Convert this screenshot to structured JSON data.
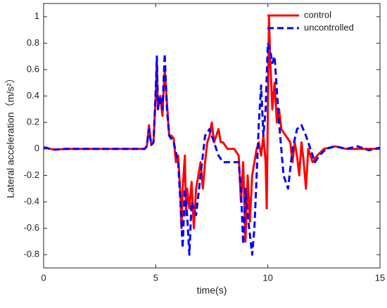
{
  "chart_data": {
    "type": "line",
    "xlabel": "time(s)",
    "ylabel": "Lateral acceleration（m/s²）",
    "xlim": [
      0,
      15
    ],
    "xticks": [
      0,
      5,
      10,
      15
    ],
    "ylim": [
      -0.9,
      1.1
    ],
    "yticks": [
      -0.8,
      -0.6,
      -0.4,
      -0.2,
      0,
      0.2,
      0.4,
      0.6,
      0.8,
      1
    ],
    "legend": "upper right",
    "series": [
      {
        "name": "control",
        "color": "#ff0000",
        "dash": false,
        "x": [
          0,
          0.1,
          0.3,
          0.5,
          1,
          4.5,
          4.6,
          4.7,
          4.8,
          4.9,
          5.0,
          5.05,
          5.1,
          5.2,
          5.3,
          5.4,
          5.5,
          5.6,
          5.7,
          5.8,
          5.9,
          6.0,
          6.1,
          6.15,
          6.2,
          6.3,
          6.35,
          6.4,
          6.5,
          6.6,
          6.7,
          6.8,
          6.9,
          7.0,
          7.1,
          7.2,
          7.3,
          7.4,
          7.5,
          7.6,
          7.7,
          7.8,
          7.9,
          8.0,
          8.2,
          8.5,
          8.7,
          8.8,
          8.9,
          9.0,
          9.1,
          9.2,
          9.3,
          9.4,
          9.5,
          9.6,
          9.7,
          9.8,
          9.9,
          9.95,
          10.0,
          10.05,
          10.1,
          10.2,
          10.3,
          10.4,
          10.5,
          10.6,
          10.8,
          11.0,
          11.1,
          11.2,
          11.3,
          11.4,
          11.5,
          11.6,
          11.7,
          11.8,
          11.9,
          12.0,
          12.2,
          12.5,
          13,
          13.5,
          14,
          15
        ],
        "values": [
          0,
          0.01,
          0,
          -0.005,
          0,
          0,
          0.02,
          0.18,
          0.03,
          0.05,
          0.4,
          0.65,
          0.3,
          0.4,
          0.25,
          0.6,
          0.35,
          0.1,
          0.1,
          0.08,
          -0.1,
          -0.05,
          -0.35,
          -0.6,
          -0.3,
          -0.05,
          -0.5,
          -0.3,
          -0.45,
          -0.25,
          -0.6,
          -0.3,
          -0.2,
          -0.1,
          -0.3,
          -0.1,
          0.05,
          0.1,
          0.2,
          0.05,
          0.1,
          0.15,
          0.05,
          0.05,
          0,
          0,
          -0.05,
          -0.4,
          -0.1,
          -0.7,
          -0.2,
          -0.55,
          -0.2,
          -0.1,
          0,
          0.05,
          -0.05,
          0.1,
          -0.1,
          -0.45,
          0.3,
          1.0,
          0.7,
          0.3,
          0.5,
          0.2,
          0.3,
          0.15,
          0.1,
          0.05,
          -0.1,
          0.05,
          -0.05,
          -0.2,
          0.05,
          -0.1,
          -0.3,
          0,
          -0.05,
          -0.1,
          -0.05,
          0,
          0.02,
          0,
          0,
          0
        ]
      },
      {
        "name": "uncontrolled",
        "color": "#0000ff",
        "dash": true,
        "x": [
          0,
          0.1,
          0.3,
          0.5,
          1,
          4.5,
          4.6,
          4.7,
          4.8,
          4.9,
          5.0,
          5.05,
          5.1,
          5.2,
          5.3,
          5.4,
          5.5,
          5.6,
          5.8,
          6.0,
          6.1,
          6.2,
          6.3,
          6.4,
          6.5,
          6.6,
          6.8,
          7.0,
          7.2,
          7.4,
          7.6,
          7.8,
          8.0,
          8.7,
          8.8,
          8.9,
          9.0,
          9.1,
          9.3,
          9.4,
          9.5,
          9.6,
          9.7,
          9.8,
          9.9,
          10.0,
          10.1,
          10.2,
          10.3,
          10.5,
          10.7,
          10.9,
          11.1,
          11.3,
          11.5,
          11.7,
          11.9,
          12.1,
          12.3,
          12.6,
          13.0,
          13.5,
          14.0,
          14.5,
          15
        ],
        "values": [
          0.01,
          0.01,
          0,
          -0.005,
          0,
          0,
          0.02,
          0.15,
          0.03,
          0.05,
          0.45,
          0.7,
          0.3,
          0.4,
          0.3,
          0.72,
          0.3,
          0.1,
          0.05,
          -0.1,
          -0.4,
          -0.75,
          -0.3,
          -0.5,
          -0.8,
          -0.4,
          -0.5,
          -0.2,
          0.1,
          0.15,
          0.05,
          -0.05,
          -0.1,
          -0.1,
          -0.3,
          -0.72,
          -0.3,
          -0.5,
          -0.8,
          -0.6,
          -0.2,
          0.2,
          0.48,
          0.1,
          0.3,
          0.8,
          0.75,
          0.65,
          0.7,
          0.2,
          -0.2,
          -0.3,
          0,
          0.15,
          0.18,
          0.1,
          0,
          -0.1,
          -0.05,
          0,
          0.02,
          0,
          0.02,
          -0.01,
          0.01
        ]
      }
    ]
  }
}
